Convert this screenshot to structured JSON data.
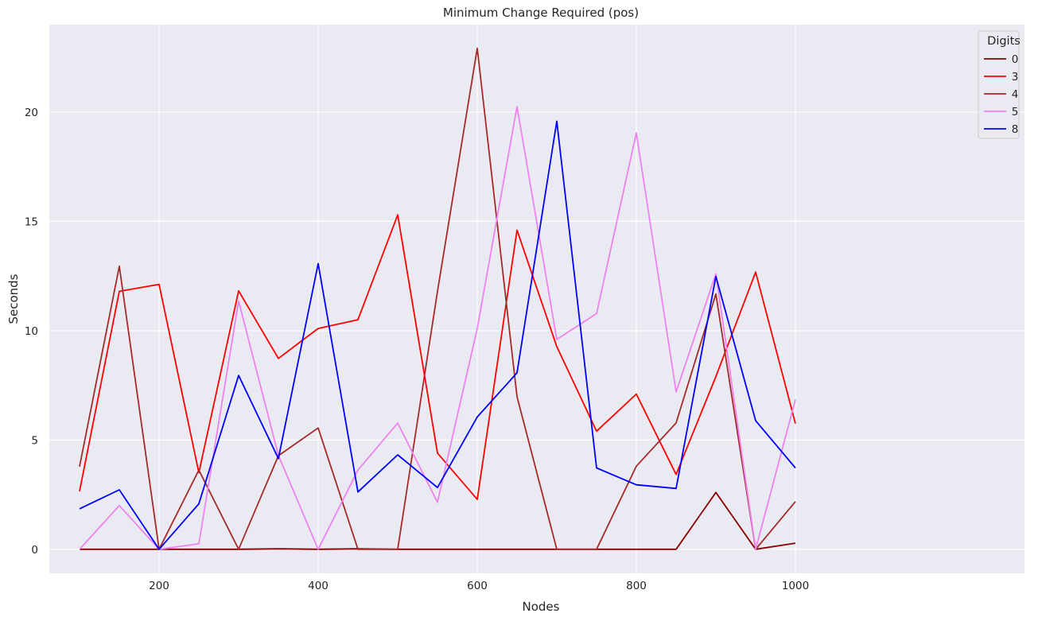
{
  "chart_data": {
    "type": "line",
    "title": "Minimum Change Required (pos)",
    "xlabel": "Nodes",
    "ylabel": "Seconds",
    "xlim": [
      62,
      1288
    ],
    "ylim": [
      -1.1,
      24.0
    ],
    "xticks": [
      200,
      400,
      600,
      800,
      1000
    ],
    "yticks": [
      0,
      5,
      10,
      15,
      20
    ],
    "grid": true,
    "background": "#eaeaf2",
    "legend": {
      "title": "Digits",
      "placement": "top-right"
    },
    "x": [
      100,
      150,
      200,
      250,
      300,
      350,
      400,
      450,
      500,
      550,
      600,
      650,
      700,
      750,
      800,
      850,
      900,
      950,
      1000
    ],
    "series": [
      {
        "name": "0",
        "color": "#8b0000",
        "values": [
          0,
          0,
          0,
          0,
          0,
          0.02,
          0,
          0.02,
          0,
          0,
          0,
          0,
          0,
          0,
          0,
          0,
          2.6,
          0,
          0.28
        ]
      },
      {
        "name": "3",
        "color": "#ff0000",
        "values": [
          2.65,
          11.8,
          12.12,
          3.5,
          11.82,
          8.73,
          10.1,
          10.5,
          15.3,
          4.4,
          2.28,
          14.6,
          9.27,
          5.4,
          7.1,
          3.42,
          7.9,
          12.68,
          5.75
        ]
      },
      {
        "name": "4",
        "color": "#a52a2a",
        "values": [
          3.78,
          12.95,
          0,
          3.62,
          0,
          4.28,
          5.55,
          0,
          0,
          11.8,
          22.92,
          6.98,
          0,
          0,
          3.8,
          5.78,
          11.68,
          0,
          2.18
        ]
      },
      {
        "name": "5",
        "color": "#ee82ee",
        "values": [
          0,
          2.0,
          0,
          0.25,
          11.35,
          4.3,
          0,
          3.62,
          5.77,
          2.15,
          10.1,
          20.25,
          9.6,
          10.78,
          19.05,
          7.2,
          12.6,
          0,
          6.85
        ]
      },
      {
        "name": "8",
        "color": "#0000ff",
        "values": [
          1.85,
          2.72,
          0,
          2.08,
          7.95,
          4.15,
          13.07,
          2.62,
          4.32,
          2.82,
          6.05,
          8.07,
          19.58,
          3.72,
          2.95,
          2.78,
          12.48,
          5.88,
          3.72
        ]
      }
    ]
  }
}
